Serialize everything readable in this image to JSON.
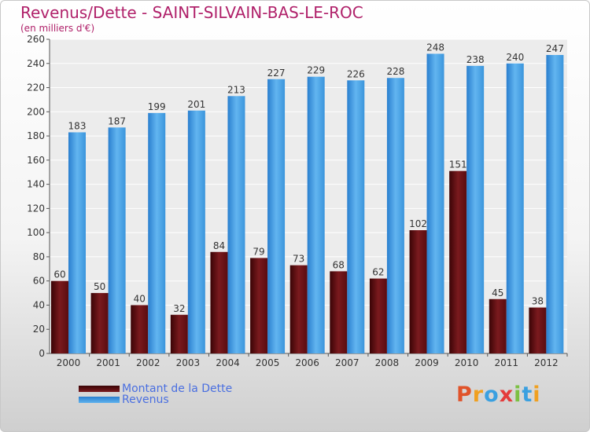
{
  "chart_data": {
    "type": "bar",
    "title": "Revenus/Dette - SAINT-SILVAIN-BAS-LE-ROC",
    "subtitle": "(en milliers d'€)",
    "categories": [
      "2000",
      "2001",
      "2002",
      "2003",
      "2004",
      "2005",
      "2006",
      "2007",
      "2008",
      "2009",
      "2010",
      "2011",
      "2012"
    ],
    "series": [
      {
        "name": "Montant de la Dette",
        "color": "#6b0f12",
        "values": [
          60,
          50,
          40,
          32,
          84,
          79,
          73,
          68,
          62,
          102,
          151,
          45,
          38
        ]
      },
      {
        "name": "Revenus",
        "color": "#3d9ae0",
        "values": [
          183,
          187,
          199,
          201,
          213,
          227,
          229,
          226,
          228,
          248,
          238,
          240,
          247
        ]
      }
    ],
    "ylim": [
      0,
      260
    ],
    "yticks": [
      0,
      20,
      40,
      60,
      80,
      100,
      120,
      140,
      160,
      180,
      200,
      220,
      240,
      260
    ],
    "grid": true,
    "legend_position": "bottom-left"
  },
  "logo": {
    "letters": [
      "P",
      "r",
      "o",
      "x",
      "i",
      "t",
      "i"
    ]
  }
}
